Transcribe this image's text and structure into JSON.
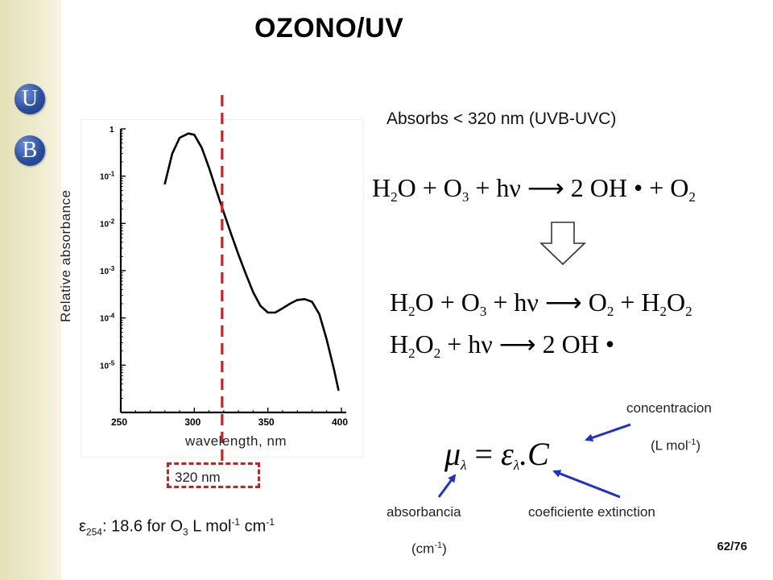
{
  "branding": {
    "logo_letters": [
      "U",
      "B"
    ],
    "sidebar_color": "#e8e5c2",
    "logo_color": "#2b4f9e"
  },
  "slide": {
    "title": "OZONO/UV",
    "page_number": "62/76"
  },
  "chart_data": {
    "type": "line",
    "xlabel": "wavelength,  nm",
    "ylabel": "Relative absorbance",
    "y_scale": "log",
    "xlim": [
      250,
      400
    ],
    "ylim": [
      1e-06,
      1
    ],
    "x_tick_labels": [
      "250",
      "300",
      "350",
      "400"
    ],
    "y_tick_labels": [
      "1",
      "10-1",
      "10-2",
      "10-3",
      "10-4",
      "10-5"
    ],
    "series": [
      {
        "x": [
          280,
          285,
          290,
          296,
          300,
          305,
          310,
          315,
          320,
          325,
          330,
          335,
          340,
          345,
          350,
          355,
          360,
          365,
          370,
          375,
          380,
          385,
          390,
          395,
          398
        ],
        "y": [
          0.07,
          0.3,
          0.65,
          0.8,
          0.75,
          0.4,
          0.15,
          0.05,
          0.017,
          0.006,
          0.0022,
          0.00085,
          0.00035,
          0.00018,
          0.00013,
          0.00013,
          0.00016,
          0.0002,
          0.00024,
          0.00025,
          0.00022,
          0.00012,
          3.5e-05,
          8e-06,
          3e-06
        ]
      }
    ],
    "marker": {
      "x": 320,
      "label": "320 nm",
      "color": "#cc1f1f"
    }
  },
  "text": {
    "epsilon_symbol": "ε",
    "epsilon_sub": "254",
    "epsilon_mid": ": 18.6 for O",
    "epsilon_o3_sub": "3",
    "epsilon_unit": " L mol",
    "epsilon_sup1": "-1",
    "epsilon_unit2": " cm",
    "epsilon_sup2": "-1",
    "absorbs_line": "Absorbs  < 320 nm (UVB-UVC)",
    "concentracion": "concentracion",
    "concentracion_unit": "(L mol",
    "concentracion_unit_sup": "-1",
    "concentracion_unit_end": ")",
    "absorbancia": "absorbancia",
    "absorbancia_unit": "(cm",
    "absorbancia_unit_sup": "-1",
    "absorbancia_unit_end": ")",
    "coeficiente": "coeficiente extinction"
  },
  "equations": {
    "eq1": [
      "H",
      "2",
      "O  +  O",
      "3",
      " + hν ⟶ 2 OH •  +  O",
      "2"
    ],
    "eq2": [
      "H",
      "2",
      "O  +  O",
      "3",
      " + hν ⟶ O",
      "2",
      " + H",
      "2",
      "O",
      "2"
    ],
    "eq3": [
      "H",
      "2",
      "O",
      "2",
      " + hν ⟶ 2 OH •"
    ],
    "formula": {
      "mu": "μ",
      "mu_sub": "λ",
      "equals": " = ",
      "eps": "ε",
      "eps_sub": "λ",
      "tail": ".C"
    }
  },
  "colors": {
    "arrow_blue": "#1f2fd0",
    "dashed_red": "#cc1f1f"
  }
}
